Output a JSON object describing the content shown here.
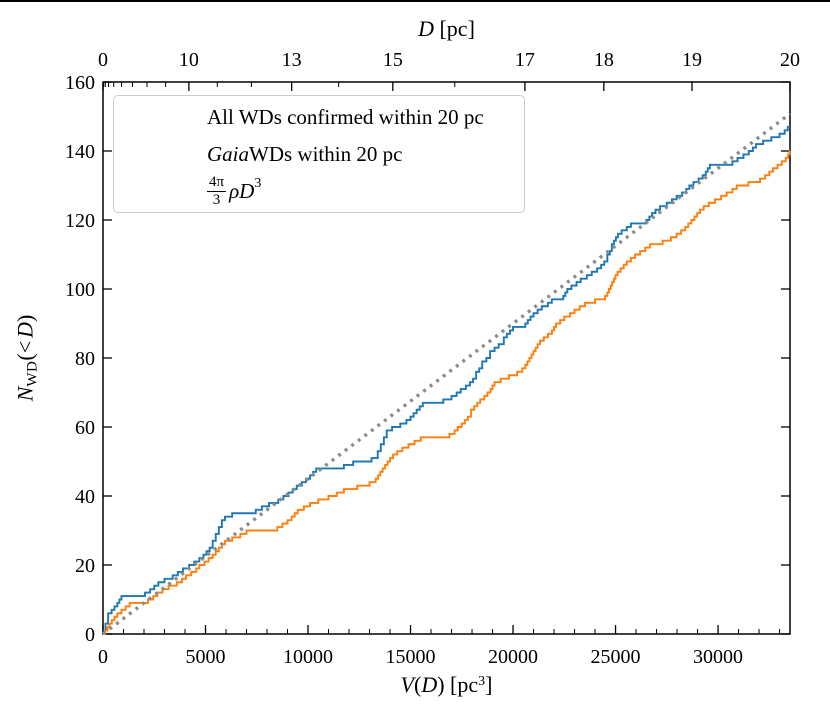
{
  "figure": {
    "background": "#ffffff",
    "top_rule_color": "#000000"
  },
  "titles": {
    "top": {
      "d": "D",
      "rest": " [pc]"
    },
    "x": {
      "v": "V",
      "p1": "(",
      "d": "D",
      "p2": ") [pc",
      "exp": "3",
      "p3": "]"
    },
    "y": {
      "n": "N",
      "sub": "WD",
      "p1": "(<",
      "d": "D",
      "p2": ")"
    }
  },
  "legend": {
    "position": "upper left",
    "items": [
      {
        "label": "All WDs confirmed within 20 pc",
        "color": "#1f77b4",
        "style": "solid"
      },
      {
        "it": "Gaia",
        "rest": " WDs within 20 pc",
        "color": "#ff7f0e",
        "style": "solid"
      },
      {
        "num": "4π",
        "den": "3",
        "body": "ρD",
        "exp": "3",
        "color": "#8c8c8c",
        "style": "dotted"
      }
    ]
  },
  "chart_data": {
    "type": "line",
    "subtype": "cumulative-step",
    "grid": false,
    "x_axis": {
      "label": "V(D) [pc^3]",
      "range": [
        0,
        33510
      ],
      "major_ticks": [
        0,
        5000,
        10000,
        15000,
        20000,
        25000,
        30000
      ],
      "minor_step": 1000,
      "tick_direction": "in"
    },
    "top_axis": {
      "label": "D [pc]",
      "range": [
        0,
        20
      ],
      "mapping": "x = (D/20)^3 * 33510",
      "major_ticks": [
        0,
        10,
        13,
        15,
        17,
        18,
        19,
        20
      ],
      "minor_ticks": [
        1,
        2,
        3,
        4,
        5,
        6,
        7,
        8,
        9,
        11,
        12,
        14,
        16
      ],
      "tick_direction": "in"
    },
    "y_axis": {
      "label": "N_WD(<D)",
      "range": [
        0,
        160
      ],
      "major_ticks": [
        0,
        20,
        40,
        60,
        80,
        100,
        120,
        140,
        160
      ],
      "mirrored_right": true,
      "tick_direction": "in"
    },
    "series": [
      {
        "name": "All WDs confirmed within 20 pc",
        "color": "#1f77b4",
        "line_style": "solid",
        "draw_style": "steps-post",
        "end_value": 147,
        "points": [
          [
            0,
            0
          ],
          [
            60,
            1
          ],
          [
            120,
            3
          ],
          [
            250,
            6
          ],
          [
            420,
            7
          ],
          [
            560,
            8
          ],
          [
            700,
            9
          ],
          [
            800,
            10
          ],
          [
            900,
            11
          ],
          [
            2050,
            12
          ],
          [
            2300,
            13
          ],
          [
            2500,
            14
          ],
          [
            2700,
            15
          ],
          [
            3000,
            16
          ],
          [
            3400,
            17
          ],
          [
            3650,
            18
          ],
          [
            3900,
            19
          ],
          [
            4200,
            20
          ],
          [
            4450,
            21
          ],
          [
            4700,
            22
          ],
          [
            4900,
            23
          ],
          [
            5050,
            24
          ],
          [
            5200,
            25
          ],
          [
            5350,
            27
          ],
          [
            5500,
            29
          ],
          [
            5650,
            31
          ],
          [
            5800,
            33
          ],
          [
            5950,
            34
          ],
          [
            6300,
            35
          ],
          [
            7450,
            36
          ],
          [
            7750,
            37
          ],
          [
            8100,
            38
          ],
          [
            8550,
            39
          ],
          [
            8800,
            40
          ],
          [
            9050,
            41
          ],
          [
            9250,
            42
          ],
          [
            9450,
            43
          ],
          [
            9700,
            44
          ],
          [
            9900,
            45
          ],
          [
            10100,
            46
          ],
          [
            10250,
            47
          ],
          [
            10400,
            48
          ],
          [
            11750,
            49
          ],
          [
            12200,
            50
          ],
          [
            13100,
            51
          ],
          [
            13400,
            53
          ],
          [
            13550,
            55
          ],
          [
            13700,
            57
          ],
          [
            13840,
            59
          ],
          [
            14100,
            60
          ],
          [
            14500,
            61
          ],
          [
            14800,
            62
          ],
          [
            15000,
            63
          ],
          [
            15150,
            64
          ],
          [
            15300,
            65
          ],
          [
            15450,
            66
          ],
          [
            15600,
            67
          ],
          [
            16600,
            68
          ],
          [
            17000,
            69
          ],
          [
            17250,
            70
          ],
          [
            17450,
            71
          ],
          [
            17700,
            72
          ],
          [
            17900,
            73
          ],
          [
            18050,
            74
          ],
          [
            18200,
            76
          ],
          [
            18350,
            77
          ],
          [
            18500,
            79
          ],
          [
            18700,
            80
          ],
          [
            18880,
            82
          ],
          [
            19100,
            83
          ],
          [
            19300,
            84
          ],
          [
            19550,
            86
          ],
          [
            19700,
            87
          ],
          [
            19850,
            88
          ],
          [
            20000,
            89
          ],
          [
            20600,
            90
          ],
          [
            20720,
            91
          ],
          [
            20850,
            92
          ],
          [
            21000,
            93
          ],
          [
            21200,
            94
          ],
          [
            21400,
            95
          ],
          [
            21700,
            96
          ],
          [
            21890,
            97
          ],
          [
            22450,
            98
          ],
          [
            22550,
            99
          ],
          [
            22650,
            100
          ],
          [
            22850,
            101
          ],
          [
            23100,
            102
          ],
          [
            23300,
            103
          ],
          [
            23600,
            104
          ],
          [
            23840,
            105
          ],
          [
            24100,
            106
          ],
          [
            24300,
            107
          ],
          [
            24450,
            108
          ],
          [
            24600,
            110
          ],
          [
            24720,
            111
          ],
          [
            24820,
            113
          ],
          [
            24920,
            114
          ],
          [
            25020,
            115
          ],
          [
            25120,
            116
          ],
          [
            25300,
            117
          ],
          [
            25550,
            118
          ],
          [
            25750,
            119
          ],
          [
            26500,
            120
          ],
          [
            26650,
            121
          ],
          [
            26780,
            122
          ],
          [
            26950,
            123
          ],
          [
            27170,
            124
          ],
          [
            27500,
            125
          ],
          [
            27750,
            126
          ],
          [
            27980,
            127
          ],
          [
            28250,
            128
          ],
          [
            28450,
            129
          ],
          [
            28600,
            130
          ],
          [
            28800,
            131
          ],
          [
            29050,
            132
          ],
          [
            29250,
            133
          ],
          [
            29400,
            134
          ],
          [
            29500,
            135
          ],
          [
            29600,
            136
          ],
          [
            30700,
            137
          ],
          [
            30950,
            138
          ],
          [
            31240,
            139
          ],
          [
            31500,
            140
          ],
          [
            31700,
            141
          ],
          [
            31850,
            142
          ],
          [
            32200,
            143
          ],
          [
            32600,
            144
          ],
          [
            33000,
            145
          ],
          [
            33250,
            146
          ],
          [
            33400,
            147
          ]
        ]
      },
      {
        "name": "Gaia WDs within 20 pc",
        "color": "#ff7f0e",
        "line_style": "solid",
        "draw_style": "steps-post",
        "end_value": 140,
        "points": [
          [
            0,
            0
          ],
          [
            100,
            1
          ],
          [
            220,
            2
          ],
          [
            320,
            3
          ],
          [
            430,
            4
          ],
          [
            560,
            5
          ],
          [
            700,
            6
          ],
          [
            900,
            7
          ],
          [
            1100,
            8
          ],
          [
            1300,
            9
          ],
          [
            2200,
            10
          ],
          [
            2450,
            11
          ],
          [
            2650,
            12
          ],
          [
            2900,
            13
          ],
          [
            3200,
            14
          ],
          [
            3600,
            15
          ],
          [
            3850,
            16
          ],
          [
            4050,
            17
          ],
          [
            4300,
            18
          ],
          [
            4550,
            19
          ],
          [
            4700,
            20
          ],
          [
            4950,
            21
          ],
          [
            5150,
            22
          ],
          [
            5350,
            23
          ],
          [
            5500,
            24
          ],
          [
            5650,
            25
          ],
          [
            5800,
            26
          ],
          [
            5950,
            27
          ],
          [
            6300,
            28
          ],
          [
            6700,
            29
          ],
          [
            7000,
            30
          ],
          [
            8500,
            31
          ],
          [
            8750,
            32
          ],
          [
            9000,
            33
          ],
          [
            9200,
            34
          ],
          [
            9350,
            35
          ],
          [
            9500,
            36
          ],
          [
            9800,
            37
          ],
          [
            10100,
            38
          ],
          [
            10500,
            39
          ],
          [
            11000,
            40
          ],
          [
            11400,
            41
          ],
          [
            11750,
            42
          ],
          [
            12400,
            43
          ],
          [
            13000,
            44
          ],
          [
            13300,
            45
          ],
          [
            13420,
            46
          ],
          [
            13530,
            47
          ],
          [
            13640,
            48
          ],
          [
            13760,
            49
          ],
          [
            13880,
            50
          ],
          [
            14000,
            51
          ],
          [
            14150,
            52
          ],
          [
            14350,
            53
          ],
          [
            14600,
            54
          ],
          [
            14900,
            55
          ],
          [
            15200,
            56
          ],
          [
            15500,
            57
          ],
          [
            16900,
            58
          ],
          [
            17150,
            59
          ],
          [
            17300,
            60
          ],
          [
            17500,
            61
          ],
          [
            17650,
            62
          ],
          [
            17800,
            63
          ],
          [
            17950,
            65
          ],
          [
            18100,
            66
          ],
          [
            18250,
            67
          ],
          [
            18400,
            68
          ],
          [
            18600,
            69
          ],
          [
            18750,
            70
          ],
          [
            18900,
            71
          ],
          [
            19000,
            72
          ],
          [
            19100,
            73
          ],
          [
            19400,
            74
          ],
          [
            19800,
            75
          ],
          [
            20200,
            76
          ],
          [
            20450,
            77
          ],
          [
            20600,
            78
          ],
          [
            20700,
            79
          ],
          [
            20800,
            80
          ],
          [
            20900,
            81
          ],
          [
            21000,
            82
          ],
          [
            21100,
            83
          ],
          [
            21200,
            84
          ],
          [
            21315,
            85
          ],
          [
            21500,
            86
          ],
          [
            21700,
            87
          ],
          [
            21900,
            88
          ],
          [
            22000,
            89
          ],
          [
            22100,
            90
          ],
          [
            22300,
            91
          ],
          [
            22500,
            92
          ],
          [
            22780,
            93
          ],
          [
            23000,
            94
          ],
          [
            23250,
            95
          ],
          [
            23510,
            96
          ],
          [
            24000,
            97
          ],
          [
            24490,
            98
          ],
          [
            24600,
            99
          ],
          [
            24680,
            100
          ],
          [
            24760,
            101
          ],
          [
            24840,
            102
          ],
          [
            24920,
            103
          ],
          [
            25000,
            104
          ],
          [
            25100,
            105
          ],
          [
            25250,
            106
          ],
          [
            25400,
            107
          ],
          [
            25550,
            108
          ],
          [
            25750,
            109
          ],
          [
            25950,
            110
          ],
          [
            26200,
            111
          ],
          [
            26450,
            112
          ],
          [
            26680,
            113
          ],
          [
            27300,
            114
          ],
          [
            27700,
            115
          ],
          [
            27980,
            116
          ],
          [
            28200,
            117
          ],
          [
            28400,
            118
          ],
          [
            28550,
            119
          ],
          [
            28700,
            120
          ],
          [
            28850,
            121
          ],
          [
            28980,
            122
          ],
          [
            29120,
            123
          ],
          [
            29300,
            124
          ],
          [
            29550,
            125
          ],
          [
            29850,
            126
          ],
          [
            30150,
            127
          ],
          [
            30420,
            128
          ],
          [
            30700,
            129
          ],
          [
            30910,
            130
          ],
          [
            31480,
            131
          ],
          [
            32050,
            132
          ],
          [
            32300,
            133
          ],
          [
            32500,
            134
          ],
          [
            32680,
            135
          ],
          [
            32900,
            136
          ],
          [
            33110,
            137
          ],
          [
            33300,
            138
          ],
          [
            33420,
            139
          ],
          [
            33490,
            140
          ]
        ]
      }
    ],
    "reference_line": {
      "name": "(4pi/3) rho D^3",
      "color": "#8c8c8c",
      "line_style": "dotted",
      "rho_per_pc3": 0.0045,
      "points": [
        [
          0,
          0
        ],
        [
          33510,
          150.8
        ]
      ]
    }
  }
}
